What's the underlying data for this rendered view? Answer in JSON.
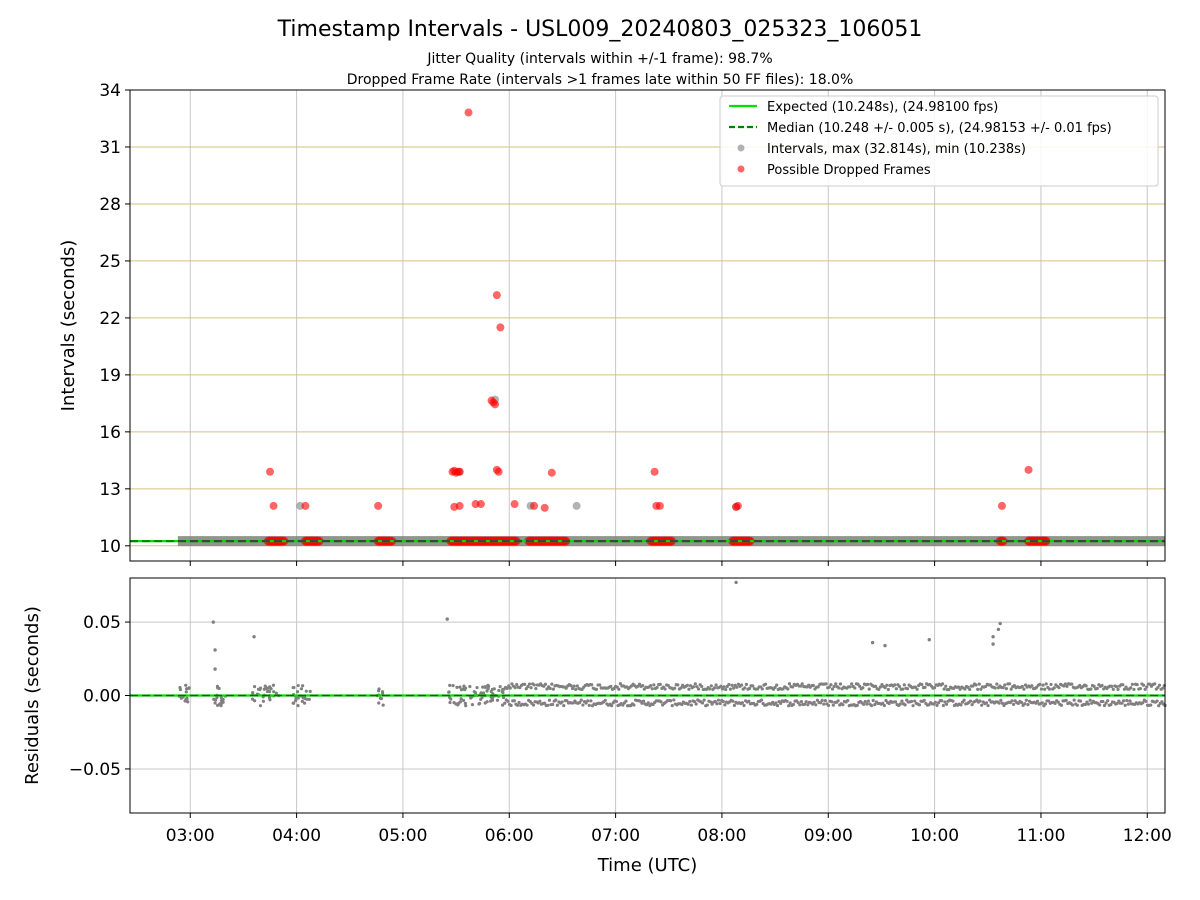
{
  "figure": {
    "title": "Timestamp Intervals - USL009_20240803_025323_106051",
    "subtitle_1": "Jitter Quality (intervals within +/-1 frame): 98.7%",
    "subtitle_2": "Dropped Frame Rate (intervals >1 frames late within 50 FF files): 18.0%"
  },
  "colors": {
    "expected": "#00e000",
    "median": "#008000",
    "intervals": "#808080",
    "dropped": "#ff0000",
    "grid_y_top": "#d4c07a",
    "grid": "#c8c8c8"
  },
  "chart_data": [
    {
      "type": "scatter",
      "name": "intervals-panel",
      "xlabel": "",
      "ylabel": "Intervals (seconds)",
      "ylim": [
        9.2,
        34
      ],
      "yticks": [
        10,
        13,
        16,
        19,
        22,
        25,
        28,
        31,
        34
      ],
      "ytick_labels": [
        "10",
        "13",
        "16",
        "19",
        "22",
        "25",
        "28",
        "31",
        "34"
      ],
      "xlim": [
        "02:26",
        "12:10"
      ],
      "grid": "on",
      "legend_position": "top-right",
      "legend": [
        "Expected (10.248s), (24.98100 fps)",
        "Median (10.248 +/- 0.005 s), (24.98153 +/- 0.01 fps)",
        "Intervals, max (32.814s), min (10.238s)",
        "Possible Dropped Frames"
      ],
      "expected_value": 10.248,
      "median_value": 10.248,
      "interval_band": {
        "start": "02:53",
        "end": "12:10",
        "value": 10.248
      },
      "gray_points": [
        {
          "x": "04:02",
          "y": 12.1
        },
        {
          "x": "06:12",
          "y": 12.1
        },
        {
          "x": "06:38",
          "y": 12.1
        },
        {
          "x": "08:08",
          "y": 12.05
        },
        {
          "x": "05:52",
          "y": 17.7
        },
        {
          "x": "05:32",
          "y": 13.9
        }
      ],
      "dropped_points": [
        {
          "x": "03:45",
          "y": 13.9
        },
        {
          "x": "03:47",
          "y": 12.1
        },
        {
          "x": "04:05",
          "y": 12.1
        },
        {
          "x": "04:46",
          "y": 12.1
        },
        {
          "x": "05:28",
          "y": 13.9
        },
        {
          "x": "05:29",
          "y": 13.95
        },
        {
          "x": "05:30",
          "y": 13.85
        },
        {
          "x": "05:31",
          "y": 13.9
        },
        {
          "x": "05:32",
          "y": 13.9
        },
        {
          "x": "05:29",
          "y": 12.05
        },
        {
          "x": "05:32",
          "y": 12.1
        },
        {
          "x": "05:37",
          "y": 32.814
        },
        {
          "x": "05:41",
          "y": 12.2
        },
        {
          "x": "05:44",
          "y": 12.2
        },
        {
          "x": "05:50",
          "y": 17.65
        },
        {
          "x": "05:51",
          "y": 17.55
        },
        {
          "x": "05:52",
          "y": 17.45
        },
        {
          "x": "05:53",
          "y": 23.2
        },
        {
          "x": "05:55",
          "y": 21.5
        },
        {
          "x": "05:53",
          "y": 14.0
        },
        {
          "x": "05:54",
          "y": 13.9
        },
        {
          "x": "06:03",
          "y": 12.2
        },
        {
          "x": "06:14",
          "y": 12.1
        },
        {
          "x": "06:20",
          "y": 12.0
        },
        {
          "x": "06:24",
          "y": 13.85
        },
        {
          "x": "07:22",
          "y": 13.9
        },
        {
          "x": "07:23",
          "y": 12.1
        },
        {
          "x": "07:25",
          "y": 12.1
        },
        {
          "x": "08:08",
          "y": 12.05
        },
        {
          "x": "08:09",
          "y": 12.1
        },
        {
          "x": "10:38",
          "y": 12.1
        },
        {
          "x": "10:53",
          "y": 14.0
        }
      ],
      "dropped_baseline_clusters": [
        [
          "03:44",
          "03:53"
        ],
        [
          "04:05",
          "04:13"
        ],
        [
          "04:46",
          "04:54"
        ],
        [
          "05:27",
          "06:04"
        ],
        [
          "06:11",
          "06:32"
        ],
        [
          "07:20",
          "07:32"
        ],
        [
          "08:06",
          "08:16"
        ],
        [
          "10:37",
          "10:39"
        ],
        [
          "10:53",
          "11:03"
        ]
      ]
    },
    {
      "type": "scatter",
      "name": "residuals-panel",
      "xlabel": "Time (UTC)",
      "ylabel": "Residuals (seconds)",
      "ylim": [
        -0.08,
        0.08
      ],
      "yticks": [
        -0.05,
        0.0,
        0.05
      ],
      "ytick_labels": [
        "−0.05",
        "0.00",
        "0.05"
      ],
      "xlim": [
        "02:26",
        "12:10"
      ],
      "xticks": [
        "03:00",
        "04:00",
        "05:00",
        "06:00",
        "07:00",
        "08:00",
        "09:00",
        "10:00",
        "11:00",
        "12:00"
      ],
      "grid": "on",
      "zero_line": 0.0,
      "dense_band": {
        "start": "05:57",
        "end": "12:10",
        "upper": 0.008,
        "lower": -0.007
      },
      "sparse_clusters": [
        [
          "02:53",
          "03:00"
        ],
        [
          "03:12",
          "03:20"
        ],
        [
          "03:35",
          "03:50"
        ],
        [
          "03:57",
          "04:08"
        ],
        [
          "04:45",
          "04:50"
        ],
        [
          "05:25",
          "05:57"
        ]
      ],
      "outliers": [
        {
          "x": "03:13",
          "y": 0.05
        },
        {
          "x": "03:14",
          "y": 0.031
        },
        {
          "x": "03:14",
          "y": 0.018
        },
        {
          "x": "03:36",
          "y": 0.04
        },
        {
          "x": "05:25",
          "y": 0.052
        },
        {
          "x": "08:08",
          "y": 0.077
        },
        {
          "x": "09:25",
          "y": 0.036
        },
        {
          "x": "09:32",
          "y": 0.034
        },
        {
          "x": "09:57",
          "y": 0.038
        },
        {
          "x": "10:33",
          "y": 0.04
        },
        {
          "x": "10:33",
          "y": 0.035
        },
        {
          "x": "10:36",
          "y": 0.045
        },
        {
          "x": "10:37",
          "y": 0.049
        }
      ]
    }
  ]
}
